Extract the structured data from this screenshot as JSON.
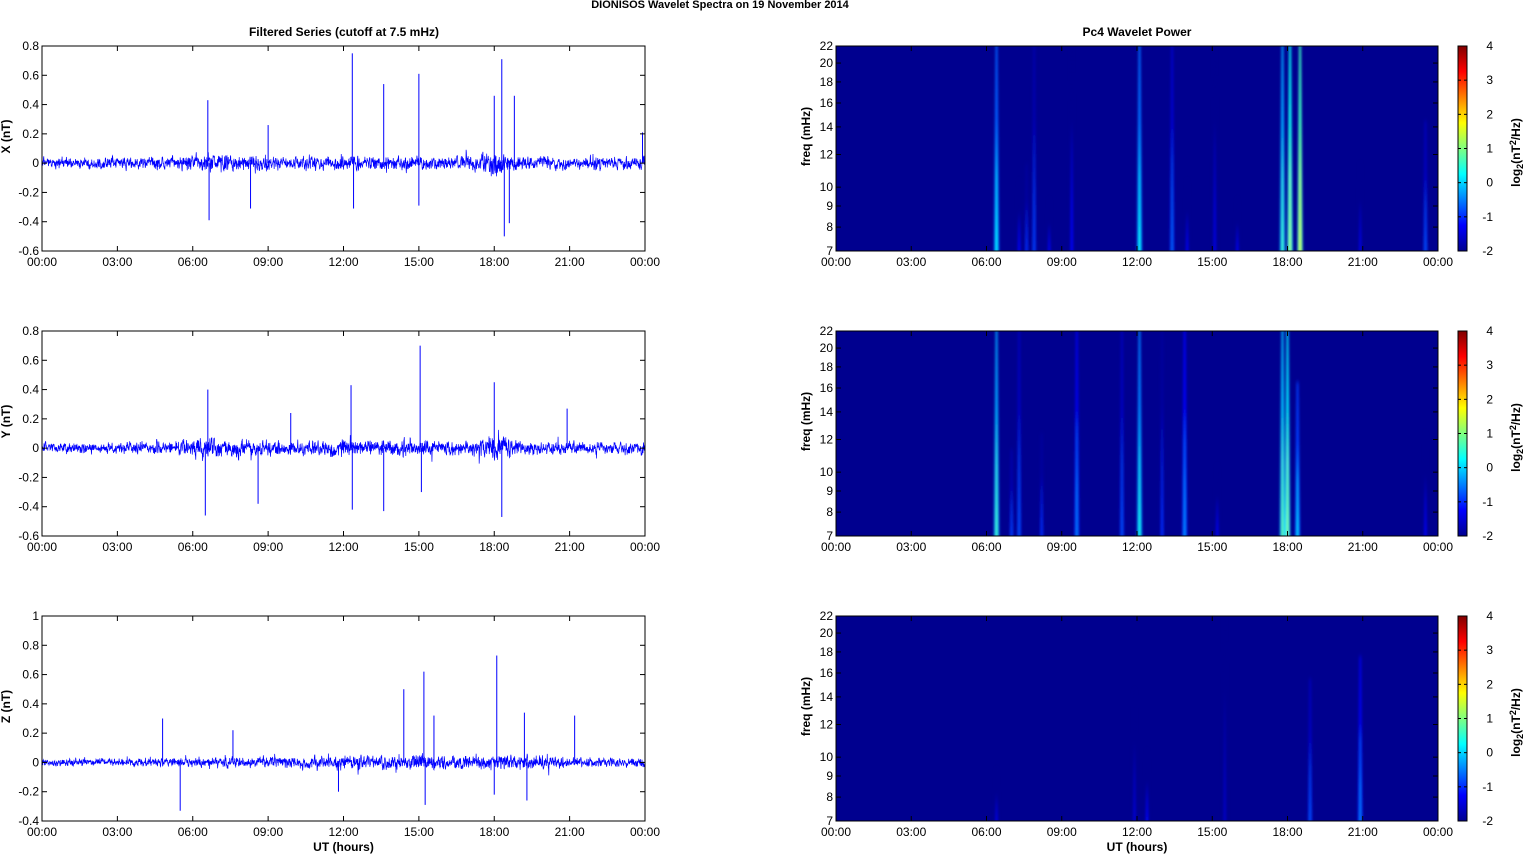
{
  "figure_title": "DIONISOS Wavelet Spectra on 19 November  2014",
  "colors": {
    "trace": "#0000ff",
    "spectrum_background": "#00008f",
    "axis": "#000000"
  },
  "chart_data": [
    {
      "type": "line",
      "panel": "X",
      "title": "Filtered Series (cutoff at 7.5 mHz)",
      "xlabel": "",
      "ylabel": "X (nT)",
      "xticks": [
        "00:00",
        "03:00",
        "06:00",
        "09:00",
        "12:00",
        "15:00",
        "18:00",
        "21:00",
        "00:00"
      ],
      "xlim_hours": [
        0,
        24
      ],
      "ylim": [
        -0.6,
        0.8
      ],
      "yticks": [
        "-0.6",
        "-0.4",
        "-0.2",
        "0",
        "0.2",
        "0.4",
        "0.6",
        "0.8"
      ],
      "series": [
        {
          "noise_envelope": {
            "hours": [
              0,
              3,
              5,
              6,
              6.5,
              7,
              8,
              9,
              10,
              11,
              12,
              13,
              14,
              15,
              16,
              17,
              17.7,
              18,
              18.5,
              19,
              20,
              21,
              22,
              23,
              24
            ],
            "amplitude": [
              0.06,
              0.06,
              0.07,
              0.09,
              0.13,
              0.11,
              0.09,
              0.08,
              0.07,
              0.07,
              0.09,
              0.08,
              0.08,
              0.08,
              0.07,
              0.08,
              0.13,
              0.16,
              0.12,
              0.08,
              0.07,
              0.07,
              0.07,
              0.07,
              0.07
            ]
          },
          "spikes": [
            {
              "hour": 6.6,
              "value": 0.43
            },
            {
              "hour": 6.65,
              "value": -0.39
            },
            {
              "hour": 8.3,
              "value": -0.31
            },
            {
              "hour": 9.0,
              "value": 0.26
            },
            {
              "hour": 12.35,
              "value": 0.75
            },
            {
              "hour": 12.4,
              "value": -0.31
            },
            {
              "hour": 13.6,
              "value": 0.54
            },
            {
              "hour": 15.0,
              "value": 0.61
            },
            {
              "hour": 15.0,
              "value": -0.29
            },
            {
              "hour": 18.3,
              "value": 0.71
            },
            {
              "hour": 18.4,
              "value": -0.5
            },
            {
              "hour": 18.0,
              "value": 0.46
            },
            {
              "hour": 18.8,
              "value": 0.46
            },
            {
              "hour": 18.6,
              "value": -0.41
            },
            {
              "hour": 23.9,
              "value": 0.21
            }
          ]
        }
      ]
    },
    {
      "type": "line",
      "panel": "Y",
      "title": "",
      "xlabel": "",
      "ylabel": "Y (nT)",
      "xticks": [
        "00:00",
        "03:00",
        "06:00",
        "09:00",
        "12:00",
        "15:00",
        "18:00",
        "21:00",
        "00:00"
      ],
      "xlim_hours": [
        0,
        24
      ],
      "ylim": [
        -0.6,
        0.8
      ],
      "yticks": [
        "-0.6",
        "-0.4",
        "-0.2",
        "0",
        "0.2",
        "0.4",
        "0.6",
        "0.8"
      ],
      "series": [
        {
          "noise_envelope": {
            "hours": [
              0,
              3,
              5,
              6,
              6.5,
              7,
              8,
              9,
              10,
              11,
              12,
              13,
              14,
              15,
              16,
              17,
              17.7,
              18,
              18.5,
              19,
              20,
              21,
              22,
              23,
              24
            ],
            "amplitude": [
              0.06,
              0.06,
              0.07,
              0.09,
              0.14,
              0.12,
              0.1,
              0.09,
              0.08,
              0.08,
              0.1,
              0.09,
              0.09,
              0.09,
              0.08,
              0.08,
              0.12,
              0.15,
              0.11,
              0.08,
              0.07,
              0.07,
              0.07,
              0.07,
              0.07
            ]
          },
          "spikes": [
            {
              "hour": 6.6,
              "value": 0.4
            },
            {
              "hour": 6.5,
              "value": -0.46
            },
            {
              "hour": 8.6,
              "value": -0.38
            },
            {
              "hour": 9.9,
              "value": 0.24
            },
            {
              "hour": 12.3,
              "value": 0.43
            },
            {
              "hour": 12.35,
              "value": -0.42
            },
            {
              "hour": 13.6,
              "value": -0.43
            },
            {
              "hour": 15.05,
              "value": 0.7
            },
            {
              "hour": 15.1,
              "value": -0.3
            },
            {
              "hour": 18.0,
              "value": 0.45
            },
            {
              "hour": 18.3,
              "value": -0.47
            },
            {
              "hour": 20.9,
              "value": 0.27
            },
            {
              "hour": 24.0,
              "value": -0.2
            }
          ]
        }
      ]
    },
    {
      "type": "line",
      "panel": "Z",
      "title": "",
      "xlabel": "UT (hours)",
      "ylabel": "Z (nT)",
      "xticks": [
        "00:00",
        "03:00",
        "06:00",
        "09:00",
        "12:00",
        "15:00",
        "18:00",
        "21:00",
        "00:00"
      ],
      "xlim_hours": [
        0,
        24
      ],
      "ylim": [
        -0.4,
        1
      ],
      "yticks": [
        "-0.4",
        "-0.2",
        "0",
        "0.2",
        "0.4",
        "0.6",
        "0.8",
        "1"
      ],
      "series": [
        {
          "noise_envelope": {
            "hours": [
              0,
              3,
              5,
              6,
              7,
              8,
              9,
              10,
              11,
              12,
              13,
              14,
              15,
              16,
              17,
              18,
              19,
              20,
              21,
              22,
              23,
              24
            ],
            "amplitude": [
              0.04,
              0.04,
              0.05,
              0.05,
              0.06,
              0.06,
              0.06,
              0.06,
              0.07,
              0.08,
              0.08,
              0.08,
              0.09,
              0.08,
              0.08,
              0.09,
              0.08,
              0.07,
              0.06,
              0.05,
              0.05,
              0.05
            ]
          },
          "spikes": [
            {
              "hour": 4.8,
              "value": 0.3
            },
            {
              "hour": 5.5,
              "value": -0.33
            },
            {
              "hour": 7.6,
              "value": 0.22
            },
            {
              "hour": 11.8,
              "value": -0.2
            },
            {
              "hour": 14.4,
              "value": 0.5
            },
            {
              "hour": 15.2,
              "value": 0.62
            },
            {
              "hour": 15.25,
              "value": -0.29
            },
            {
              "hour": 15.6,
              "value": 0.32
            },
            {
              "hour": 18.1,
              "value": 0.73
            },
            {
              "hour": 18.0,
              "value": -0.22
            },
            {
              "hour": 19.2,
              "value": 0.34
            },
            {
              "hour": 19.3,
              "value": -0.26
            },
            {
              "hour": 21.2,
              "value": 0.32
            }
          ]
        }
      ]
    },
    {
      "type": "heatmap",
      "panel": "X",
      "title": "Pc4 Wavelet Power",
      "xlabel": "",
      "ylabel": "freq (mHz)",
      "xticks": [
        "00:00",
        "03:00",
        "06:00",
        "09:00",
        "12:00",
        "15:00",
        "18:00",
        "21:00",
        "00:00"
      ],
      "xlim_hours": [
        0,
        24
      ],
      "ylim_mHz": [
        7,
        22
      ],
      "yscale": "log",
      "yticks": [
        "7",
        "8",
        "9",
        "10",
        "12",
        "14",
        "16",
        "18",
        "20",
        "22"
      ],
      "colorbar": {
        "label": "log2(nT2/Hz)",
        "range": [
          -2,
          4
        ],
        "ticks": [
          "4",
          "3",
          "2",
          "1",
          "0",
          "-1",
          "-2"
        ]
      },
      "background_level": -2,
      "streaks": [
        {
          "hour": 6.4,
          "fmin": 7,
          "fmax": 22,
          "peak": 0.2
        },
        {
          "hour": 7.3,
          "fmin": 7,
          "fmax": 10,
          "peak": -1.2
        },
        {
          "hour": 7.6,
          "fmin": 7,
          "fmax": 11,
          "peak": -1.0
        },
        {
          "hour": 7.9,
          "fmin": 7,
          "fmax": 22,
          "peak": -0.9
        },
        {
          "hour": 8.5,
          "fmin": 7,
          "fmax": 9,
          "peak": -1.3
        },
        {
          "hour": 9.4,
          "fmin": 7,
          "fmax": 22,
          "peak": -1.2
        },
        {
          "hour": 12.1,
          "fmin": 7,
          "fmax": 22,
          "peak": 0.3
        },
        {
          "hour": 13.4,
          "fmin": 7,
          "fmax": 22,
          "peak": -0.7
        },
        {
          "hour": 14.0,
          "fmin": 7,
          "fmax": 10,
          "peak": -1.3
        },
        {
          "hour": 15.1,
          "fmin": 7,
          "fmax": 22,
          "peak": -1.4
        },
        {
          "hour": 16.0,
          "fmin": 7,
          "fmax": 9,
          "peak": -1.3
        },
        {
          "hour": 17.8,
          "fmin": 7,
          "fmax": 22,
          "peak": 0.6
        },
        {
          "hour": 18.1,
          "fmin": 7,
          "fmax": 22,
          "peak": 1.2
        },
        {
          "hour": 18.5,
          "fmin": 7,
          "fmax": 22,
          "peak": 1.5
        },
        {
          "hour": 20.9,
          "fmin": 7,
          "fmax": 11,
          "peak": -1.4
        },
        {
          "hour": 23.5,
          "fmin": 7,
          "fmax": 14,
          "peak": -0.8
        }
      ]
    },
    {
      "type": "heatmap",
      "panel": "Y",
      "title": "",
      "xlabel": "",
      "ylabel": "freq (mHz)",
      "xticks": [
        "00:00",
        "03:00",
        "06:00",
        "09:00",
        "12:00",
        "15:00",
        "18:00",
        "21:00",
        "00:00"
      ],
      "xlim_hours": [
        0,
        24
      ],
      "ylim_mHz": [
        7,
        22
      ],
      "yscale": "log",
      "yticks": [
        "7",
        "8",
        "9",
        "10",
        "12",
        "14",
        "16",
        "18",
        "20",
        "22"
      ],
      "colorbar": {
        "label": "log2(nT2/Hz)",
        "range": [
          -2,
          4
        ],
        "ticks": [
          "4",
          "3",
          "2",
          "1",
          "0",
          "-1",
          "-2"
        ]
      },
      "background_level": -2,
      "streaks": [
        {
          "hour": 6.4,
          "fmin": 7,
          "fmax": 22,
          "peak": 0.6
        },
        {
          "hour": 7.0,
          "fmin": 7,
          "fmax": 11,
          "peak": -0.9
        },
        {
          "hour": 7.3,
          "fmin": 7,
          "fmax": 22,
          "peak": -0.8
        },
        {
          "hour": 8.2,
          "fmin": 7,
          "fmax": 12,
          "peak": -1.0
        },
        {
          "hour": 9.6,
          "fmin": 7,
          "fmax": 22,
          "peak": -0.5
        },
        {
          "hour": 11.4,
          "fmin": 7,
          "fmax": 22,
          "peak": -0.8
        },
        {
          "hour": 12.1,
          "fmin": 7,
          "fmax": 22,
          "peak": 0.4
        },
        {
          "hour": 13.0,
          "fmin": 7,
          "fmax": 22,
          "peak": -1.0
        },
        {
          "hour": 13.9,
          "fmin": 7,
          "fmax": 22,
          "peak": -0.4
        },
        {
          "hour": 15.2,
          "fmin": 7,
          "fmax": 10,
          "peak": -1.3
        },
        {
          "hour": 17.8,
          "fmin": 7,
          "fmax": 22,
          "peak": 0.8
        },
        {
          "hour": 18.0,
          "fmin": 7,
          "fmax": 22,
          "peak": 1.0
        },
        {
          "hour": 18.4,
          "fmin": 7,
          "fmax": 16,
          "peak": 0.0
        },
        {
          "hour": 23.5,
          "fmin": 7,
          "fmax": 12,
          "peak": -1.3
        }
      ]
    },
    {
      "type": "heatmap",
      "panel": "Z",
      "title": "",
      "xlabel": "UT (hours)",
      "ylabel": "freq (mHz)",
      "xticks": [
        "00:00",
        "03:00",
        "06:00",
        "09:00",
        "12:00",
        "15:00",
        "18:00",
        "21:00",
        "00:00"
      ],
      "xlim_hours": [
        0,
        24
      ],
      "ylim_mHz": [
        7,
        22
      ],
      "yscale": "log",
      "yticks": [
        "7",
        "8",
        "9",
        "10",
        "12",
        "14",
        "16",
        "18",
        "20",
        "22"
      ],
      "colorbar": {
        "label": "log2(nT2/Hz)",
        "range": [
          -2,
          4
        ],
        "ticks": [
          "4",
          "3",
          "2",
          "1",
          "0",
          "-1",
          "-2"
        ]
      },
      "background_level": -2,
      "streaks": [
        {
          "hour": 6.4,
          "fmin": 7,
          "fmax": 9,
          "peak": -1.4
        },
        {
          "hour": 11.9,
          "fmin": 7,
          "fmax": 14,
          "peak": -1.5
        },
        {
          "hour": 12.4,
          "fmin": 7,
          "fmax": 10,
          "peak": -1.2
        },
        {
          "hour": 15.5,
          "fmin": 7,
          "fmax": 22,
          "peak": -1.6
        },
        {
          "hour": 18.9,
          "fmin": 7,
          "fmax": 15,
          "peak": -0.8
        },
        {
          "hour": 20.9,
          "fmin": 7,
          "fmax": 17,
          "peak": -0.5
        }
      ]
    }
  ]
}
